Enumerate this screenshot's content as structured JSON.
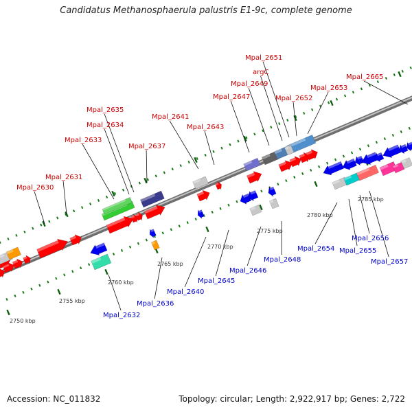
{
  "title": "Candidatus Methanosphaerula palustris E1-9c, complete genome",
  "footer": {
    "accession": "Accession: NC_011832",
    "summary": "Topology: circular; Length: 2,922,917 bp; Genes: 2,722"
  },
  "colors": {
    "forward_label": "#cc0000",
    "reverse_label": "#0000cc",
    "backbone": "#808080",
    "tick": "#1a7a1a"
  },
  "scale_labels": [
    "2750 kbp",
    "2755 kbp",
    "2760 kbp",
    "2765 kbp",
    "2770 kbp",
    "2775 kbp",
    "2780 kbp",
    "2785 kbp"
  ],
  "forward_labels": [
    "Mpal_2630",
    "Mpal_2631",
    "Mpal_2633",
    "Mpal_2634",
    "Mpal_2635",
    "Mpal_2637",
    "Mpal_2641",
    "Mpal_2643",
    "Mpal_2647",
    "Mpal_2649",
    "argC",
    "Mpal_2651",
    "Mpal_2652",
    "Mpal_2653",
    "Mpal_2665"
  ],
  "reverse_labels": [
    "Mpal_2632",
    "Mpal_2636",
    "Mpal_2640",
    "Mpal_2645",
    "Mpal_2646",
    "Mpal_2648",
    "Mpal_2654",
    "Mpal_2655",
    "Mpal_2656",
    "Mpal_2657"
  ]
}
